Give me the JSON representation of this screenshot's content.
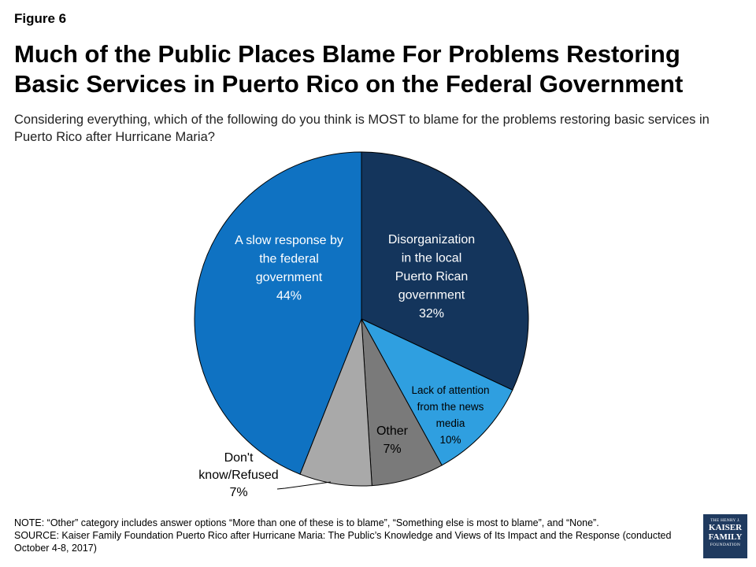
{
  "figure_label": "Figure 6",
  "title": "Much of the Public Places Blame For Problems Restoring Basic Services in Puerto Rico on the Federal Government",
  "subtitle": "Considering everything, which of the following do you think is MOST to blame for the problems restoring basic services in Puerto Rico after Hurricane Maria?",
  "chart_data": {
    "type": "pie",
    "slices": [
      {
        "label_lines": [
          "Disorganization",
          "in the local",
          "Puerto Rican",
          "government",
          "32%"
        ],
        "value": 32,
        "color": "#14355c",
        "text_color": "#ffffff"
      },
      {
        "label_lines": [
          "Lack of attention",
          "from the news",
          "media",
          "10%"
        ],
        "value": 10,
        "color": "#2f9fe0",
        "text_color": "#000000"
      },
      {
        "label_lines": [
          "Other",
          "7%"
        ],
        "value": 7,
        "color": "#7a7a7a",
        "text_color": "#000000"
      },
      {
        "label_lines": [
          "Don't",
          "know/Refused",
          "7%"
        ],
        "value": 7,
        "color": "#a9a9a9",
        "text_color": "#000000"
      },
      {
        "label_lines": [
          "A slow response by",
          "the federal",
          "government",
          "44%"
        ],
        "value": 44,
        "color": "#0f72c2",
        "text_color": "#ffffff"
      }
    ]
  },
  "note": "NOTE: “Other” category includes answer options “More than one of these is to blame”, “Something else is most to blame”, and “None”.",
  "source": "SOURCE: Kaiser Family Foundation Puerto Rico after Hurricane Maria: The Public’s Knowledge and Views of Its Impact and the Response (conducted October 4-8, 2017)",
  "logo": {
    "line1": "THE HENRY J.",
    "line2": "KAISER",
    "line3": "FAMILY",
    "line4": "FOUNDATION"
  }
}
